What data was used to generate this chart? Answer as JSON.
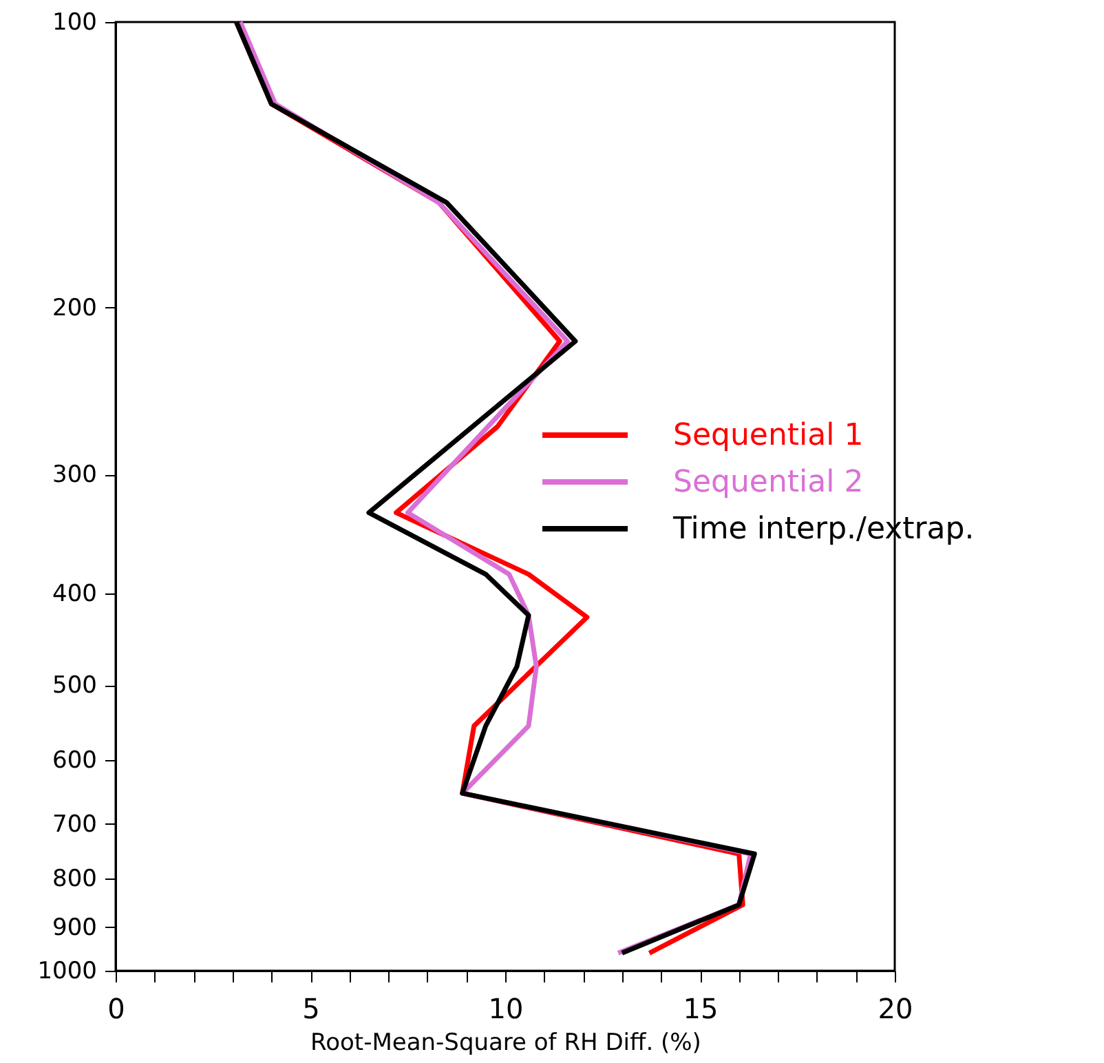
{
  "chart_data": {
    "type": "line",
    "xlabel": "Root-Mean-Square of RH Diff. (%)",
    "xlim": [
      0,
      20
    ],
    "xticks": [
      0,
      {
        "value": 1,
        "label": null
      },
      {
        "value": 2,
        "label": null
      },
      {
        "value": 3,
        "label": null
      },
      {
        "value": 4,
        "label": null
      },
      5,
      {
        "value": 6,
        "label": null
      },
      {
        "value": 7,
        "label": null
      },
      {
        "value": 8,
        "label": null
      },
      {
        "value": 9,
        "label": null
      },
      10,
      {
        "value": 11,
        "label": null
      },
      {
        "value": 12,
        "label": null
      },
      {
        "value": 13,
        "label": null
      },
      {
        "value": 14,
        "label": null
      },
      15,
      {
        "value": 16,
        "label": null
      },
      {
        "value": 17,
        "label": null
      },
      {
        "value": 18,
        "label": null
      },
      {
        "value": 19,
        "label": null
      },
      20
    ],
    "ylim": [
      1000,
      100
    ],
    "yticks": [
      100,
      200,
      300,
      400,
      500,
      600,
      700,
      800,
      900,
      1000
    ],
    "log": "y",
    "grid": false,
    "legend": "right",
    "marker": "none",
    "line_style": "solid",
    "series": [
      {
        "name": "Sequential 1",
        "color": "#ff0000",
        "x": [
          3.1,
          4.0,
          8.3,
          11.4,
          9.8,
          7.2,
          10.6,
          12.1,
          9.2,
          8.9,
          16.0,
          16.1,
          13.7
        ],
        "values": [
          100,
          122,
          155,
          217,
          267,
          329,
          382,
          424,
          552,
          650,
          753,
          852,
          958
        ]
      },
      {
        "name": "Sequential 2",
        "color": "#da70d6",
        "x": [
          3.2,
          4.1,
          8.3,
          11.6,
          7.5,
          10.1,
          10.6,
          10.8,
          10.6,
          8.9,
          16.3,
          16.0,
          12.9
        ],
        "values": [
          100,
          122,
          155,
          217,
          329,
          382,
          422,
          478,
          552,
          650,
          753,
          852,
          958
        ]
      },
      {
        "name": "Time interp./extrap.",
        "color": "#000000",
        "x": [
          3.1,
          4.0,
          8.5,
          11.8,
          6.5,
          9.5,
          10.6,
          10.3,
          9.5,
          8.9,
          16.4,
          16.0,
          13.0
        ],
        "values": [
          100,
          122,
          155,
          217,
          329,
          382,
          422,
          478,
          552,
          650,
          753,
          852,
          958
        ]
      }
    ]
  }
}
